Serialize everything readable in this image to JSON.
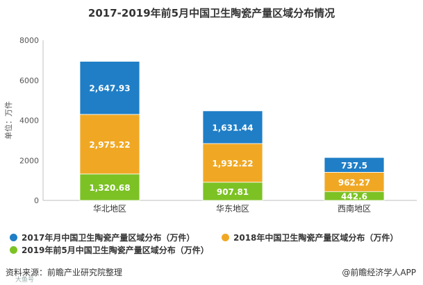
{
  "title": "2017-2019年前5月中国卫生陶瓷产量区域分布情况",
  "chart_data": {
    "type": "bar",
    "stacked": true,
    "categories": [
      "华北地区",
      "华东地区",
      "西南地区"
    ],
    "series": [
      {
        "name": "2019年前5月中国卫生陶瓷产量区域分布（万件）",
        "values": [
          1320.68,
          907.81,
          442.6
        ],
        "labels": [
          "1,320.68",
          "907.81",
          "442.6"
        ],
        "color": "#7cc224"
      },
      {
        "name": "2018年中国卫生陶瓷产量区域分布（万件）",
        "values": [
          2975.22,
          1932.22,
          962.27
        ],
        "labels": [
          "2,975.22",
          "1,932.22",
          "962.27"
        ],
        "color": "#f0a824"
      },
      {
        "name": "2017年月中国卫生陶瓷产量区域分布（万件）",
        "values": [
          2647.93,
          1631.44,
          737.5
        ],
        "labels": [
          "2,647.93",
          "1,631.44",
          "737.5"
        ],
        "color": "#1f7ec6"
      }
    ],
    "ylabel": "单位：万件",
    "ylim": [
      0,
      8000
    ],
    "yticks": [
      0,
      2000,
      4000,
      6000,
      8000
    ],
    "grid": false,
    "legend_position": "bottom"
  },
  "legend": [
    {
      "label": "2017年月中国卫生陶瓷产量区域分布（万件）",
      "color": "#1f7ec6"
    },
    {
      "label": "2018年中国卫生陶瓷产量区域分布（万件）",
      "color": "#f0a824"
    },
    {
      "label": "2019年前5月中国卫生陶瓷产量区域分布（万件）",
      "color": "#7cc224"
    }
  ],
  "footer": {
    "source": "资料来源：前瞻产业研究院整理",
    "brand": "@前瞻经济学人APP",
    "watermark": "大鱼号"
  }
}
